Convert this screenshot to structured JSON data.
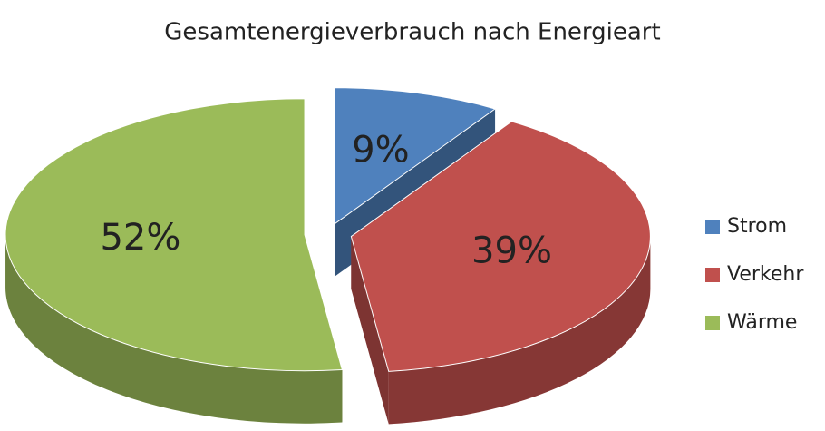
{
  "chart_data": {
    "type": "pie",
    "title": "Gesamtenergieverbrauch nach Energieart",
    "categories": [
      "Strom",
      "Verkehr",
      "Wärme"
    ],
    "values": [
      9,
      39,
      52
    ],
    "value_labels": [
      "9%",
      "39%",
      "52%"
    ],
    "colors": [
      "#4f81bd",
      "#c0504d",
      "#9bbb59"
    ],
    "legend": "right"
  }
}
